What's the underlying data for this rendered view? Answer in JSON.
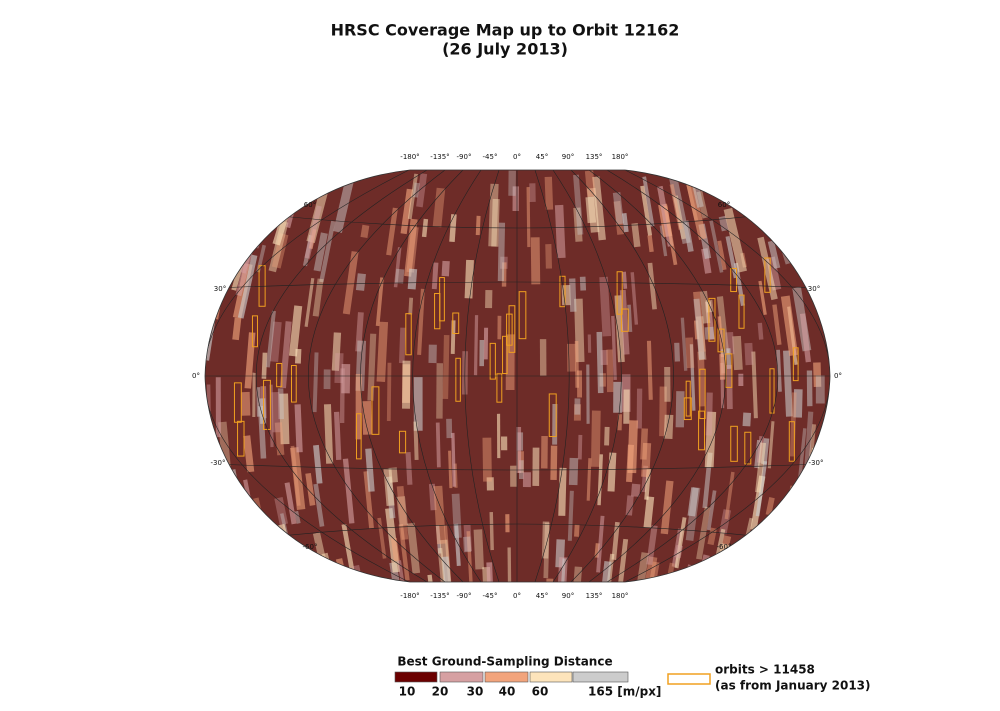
{
  "title": "HRSC Coverage Map up to Orbit 12162",
  "subtitle": "(26 July 2013)",
  "map": {
    "longitude_labels": [
      "-180°",
      "-135°",
      "-90°",
      "-45°",
      "0°",
      "45°",
      "90°",
      "135°",
      "180°"
    ],
    "latitude_labels": [
      "60°",
      "30°",
      "0°",
      "-30°",
      "-60°"
    ]
  },
  "legend": {
    "title": "Best Ground-Sampling Distance",
    "swatch_colors": [
      "#6b0000",
      "#d6a0a2",
      "#f2a47c",
      "#fde4bb",
      "#cccccc"
    ],
    "labels": [
      "10",
      "20",
      "30",
      "40",
      "60",
      "165 [m/px]"
    ]
  },
  "orbits_legend": {
    "color": "#f0a020",
    "lines": [
      "orbits > 11458",
      "(as from January 2013)"
    ]
  }
}
